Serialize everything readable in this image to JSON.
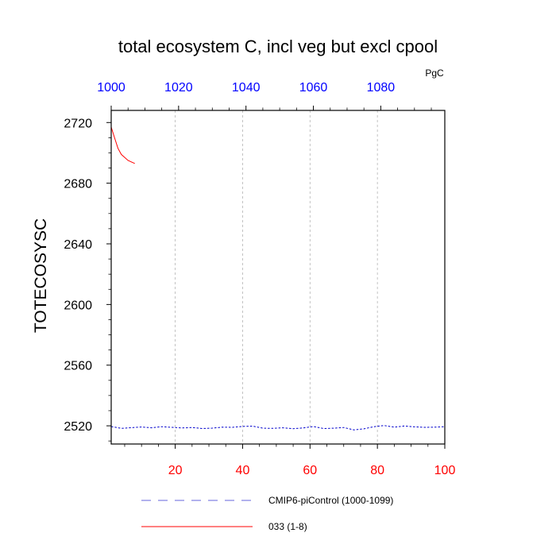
{
  "chart_data": {
    "type": "line",
    "title": "total ecosystem C, incl veg but excl cpool",
    "units": "PgC",
    "ylabel": "TOTECOSYSC",
    "xlabel": "",
    "bottom_axis": {
      "ticks": [
        "20",
        "40",
        "60",
        "80",
        "100"
      ],
      "tick_values": [
        20,
        40,
        60,
        80,
        100
      ],
      "range": [
        1,
        100
      ],
      "color": "#ff0000"
    },
    "top_axis": {
      "ticks": [
        "1000",
        "1020",
        "1040",
        "1060",
        "1080"
      ],
      "tick_values": [
        1000,
        1020,
        1040,
        1060,
        1080
      ],
      "range": [
        1000,
        1099
      ],
      "color": "#0000ff"
    },
    "y_axis": {
      "ticks": [
        "2520",
        "2560",
        "2600",
        "2640",
        "2680",
        "2720"
      ],
      "tick_values": [
        2520,
        2560,
        2600,
        2640,
        2680,
        2720
      ],
      "range": [
        2508,
        2728
      ]
    },
    "grid": "vertical dashed gray",
    "series": [
      {
        "name": "CMIP6-piControl (1000-1099)",
        "legend_label": "CMIP6-piControl (1000-1099)",
        "color": "#0000cc",
        "style": "dashed",
        "axis": "top",
        "x": [
          1000,
          1003,
          1006,
          1009,
          1012,
          1015,
          1018,
          1021,
          1024,
          1027,
          1030,
          1033,
          1036,
          1039,
          1042,
          1045,
          1048,
          1051,
          1054,
          1057,
          1060,
          1063,
          1066,
          1069,
          1072,
          1075,
          1078,
          1081,
          1084,
          1087,
          1090,
          1093,
          1096,
          1099
        ],
        "values": [
          2519.5,
          2518.3,
          2518.8,
          2519.2,
          2518.7,
          2519.4,
          2519.0,
          2518.6,
          2518.9,
          2518.2,
          2518.5,
          2519.1,
          2519.0,
          2519.6,
          2519.8,
          2518.4,
          2518.3,
          2518.7,
          2518.1,
          2518.6,
          2519.5,
          2518.2,
          2518.4,
          2518.9,
          2517.3,
          2518.0,
          2519.4,
          2520.2,
          2519.1,
          2519.9,
          2519.3,
          2519.0,
          2519.1,
          2519.4
        ]
      },
      {
        "name": "033 (1-8)",
        "legend_label": "033 (1-8)",
        "color": "#ff0000",
        "style": "solid",
        "axis": "bottom",
        "x": [
          1,
          2,
          3,
          4,
          5,
          6,
          7,
          8
        ],
        "values": [
          2717,
          2710,
          2703,
          2699,
          2697,
          2695,
          2694,
          2693
        ]
      }
    ]
  }
}
